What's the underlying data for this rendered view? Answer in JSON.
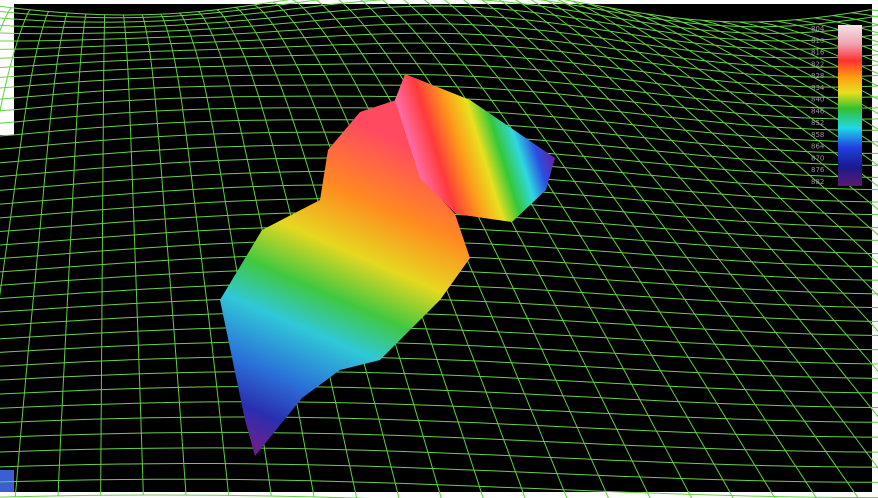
{
  "legend": {
    "labels": [
      "804",
      "810",
      "816",
      "822",
      "828",
      "834",
      "840",
      "846",
      "852",
      "858",
      "864",
      "870",
      "876",
      "882"
    ]
  }
}
